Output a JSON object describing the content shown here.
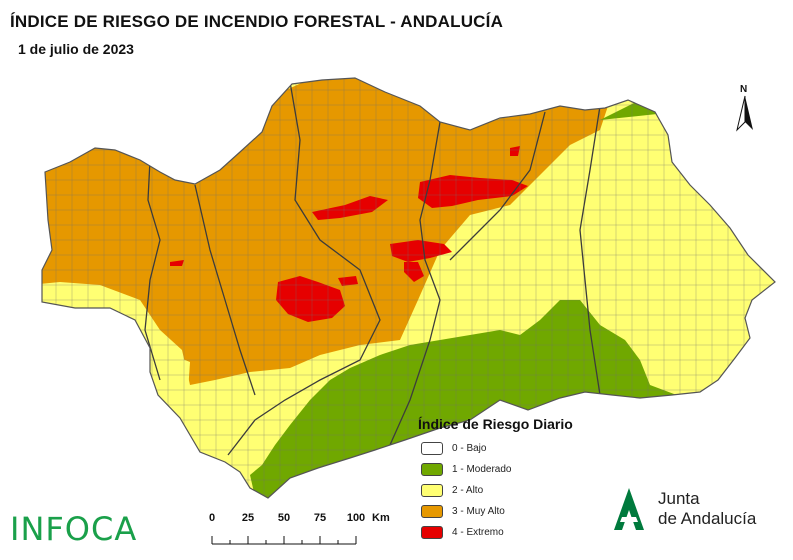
{
  "header": {
    "title": "ÍNDICE DE RIESGO DE INCENDIO FORESTAL - ANDALUCÍA",
    "date": "1 de julio de 2023"
  },
  "map": {
    "region": "Andalucía",
    "colors": {
      "bajo": "#ffffff",
      "moderado": "#70a800",
      "alto": "#ffff73",
      "muy_alto": "#e69800",
      "extremo": "#e60000",
      "boundary": "#5a5a5a"
    }
  },
  "legend": {
    "title": "Índice de Riesgo Diario",
    "items": [
      {
        "label": "0 - Bajo",
        "color": "#ffffff"
      },
      {
        "label": "1 - Moderado",
        "color": "#70a800"
      },
      {
        "label": "2 - Alto",
        "color": "#ffff73"
      },
      {
        "label": "3 - Muy Alto",
        "color": "#e69800"
      },
      {
        "label": "4 - Extremo",
        "color": "#e60000"
      }
    ]
  },
  "north_arrow": {
    "label": "N"
  },
  "scale_bar": {
    "ticks": [
      "0",
      "25",
      "50",
      "75",
      "100"
    ],
    "unit": "Km"
  },
  "branding": {
    "infoca": "INFOCA",
    "junta_line1": "Junta",
    "junta_line2": "de Andalucía",
    "junta_color": "#007a3d"
  }
}
